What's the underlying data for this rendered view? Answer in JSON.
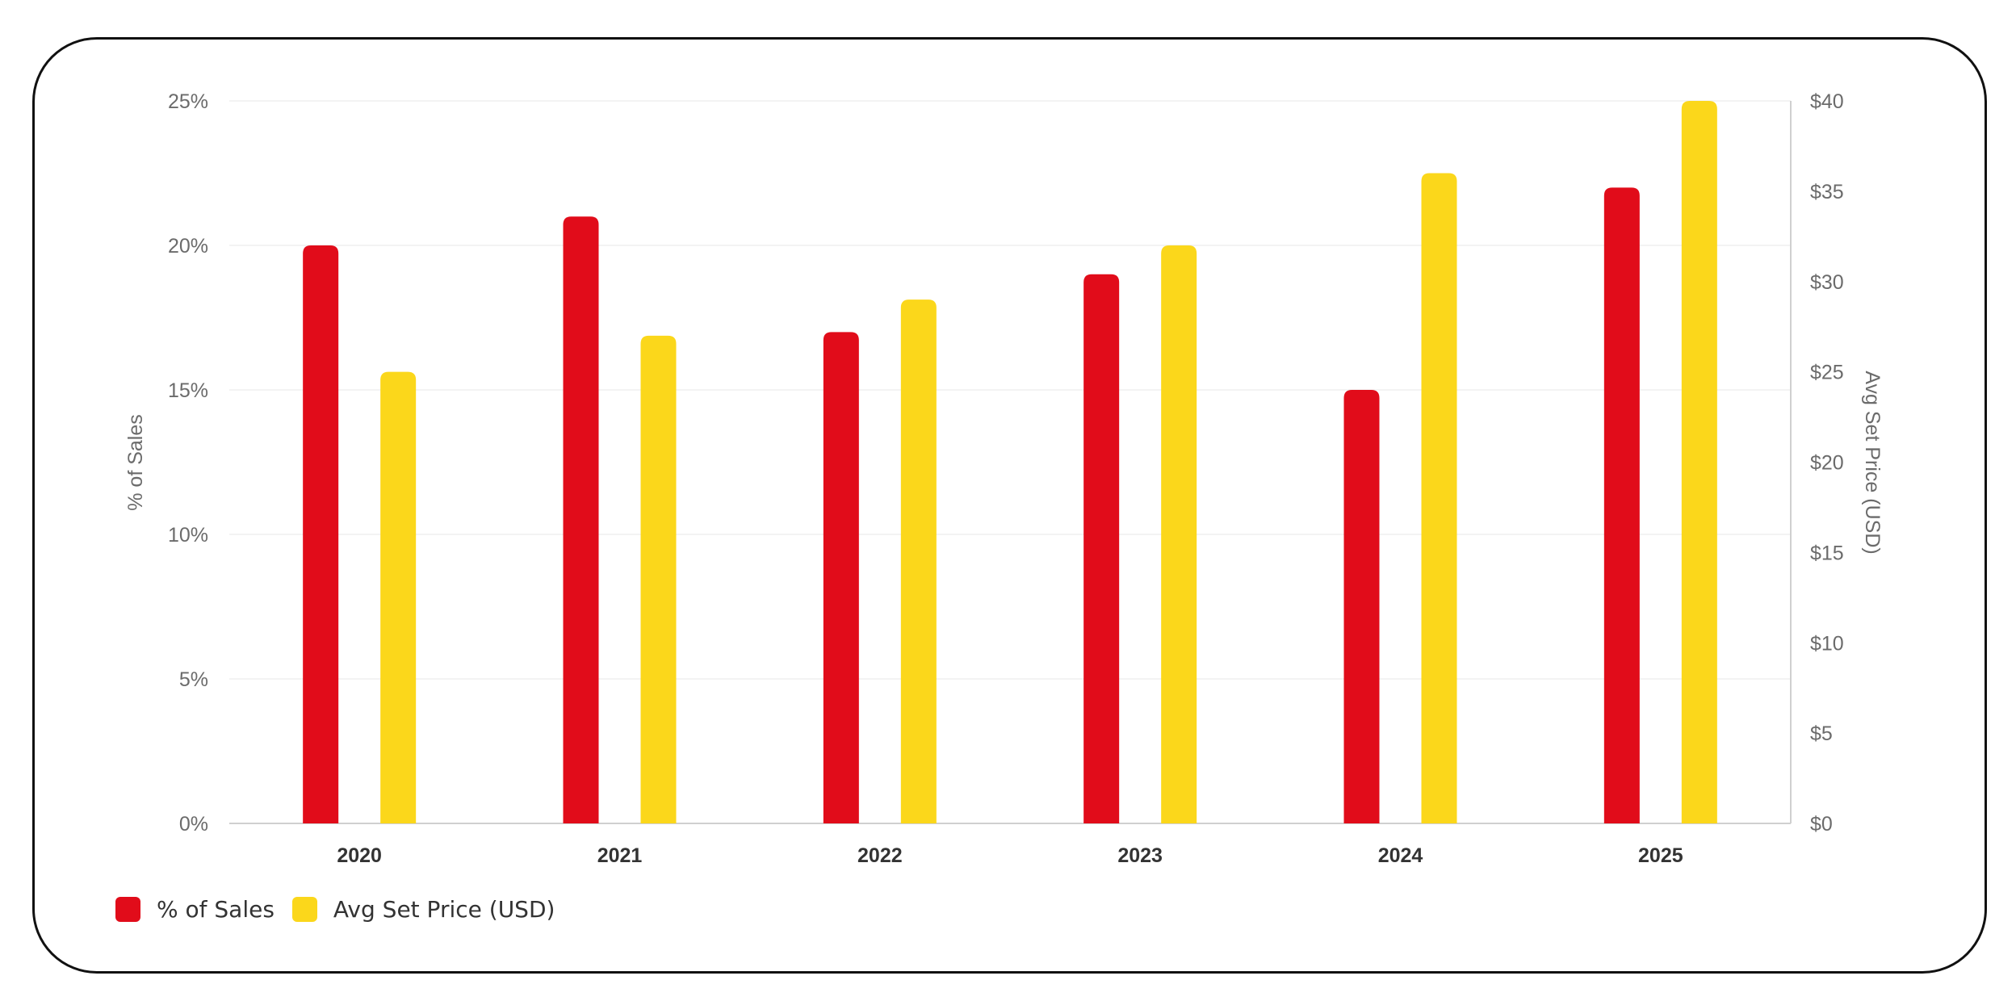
{
  "chart_data": {
    "type": "bar",
    "categories": [
      "2020",
      "2021",
      "2022",
      "2023",
      "2024",
      "2025"
    ],
    "series": [
      {
        "name": "% of Sales",
        "axis": "left",
        "color": "#e10c1a",
        "values": [
          20,
          21,
          17,
          19,
          15,
          22
        ]
      },
      {
        "name": "Avg Set Price (USD)",
        "axis": "right",
        "color": "#fbd71b",
        "values": [
          25,
          27,
          29,
          32,
          36,
          40
        ]
      }
    ],
    "y_left": {
      "label": "% of Sales",
      "range": [
        0,
        25
      ],
      "ticks": [
        "0%",
        "5%",
        "10%",
        "15%",
        "20%",
        "25%"
      ]
    },
    "y_right": {
      "label": "Avg Set Price (USD)",
      "range": [
        0,
        40
      ],
      "ticks": [
        "$0",
        "$5",
        "$10",
        "$15",
        "$20",
        "$25",
        "$30",
        "$35",
        "$40"
      ]
    },
    "grid": true,
    "legend_position": "bottom-left"
  }
}
